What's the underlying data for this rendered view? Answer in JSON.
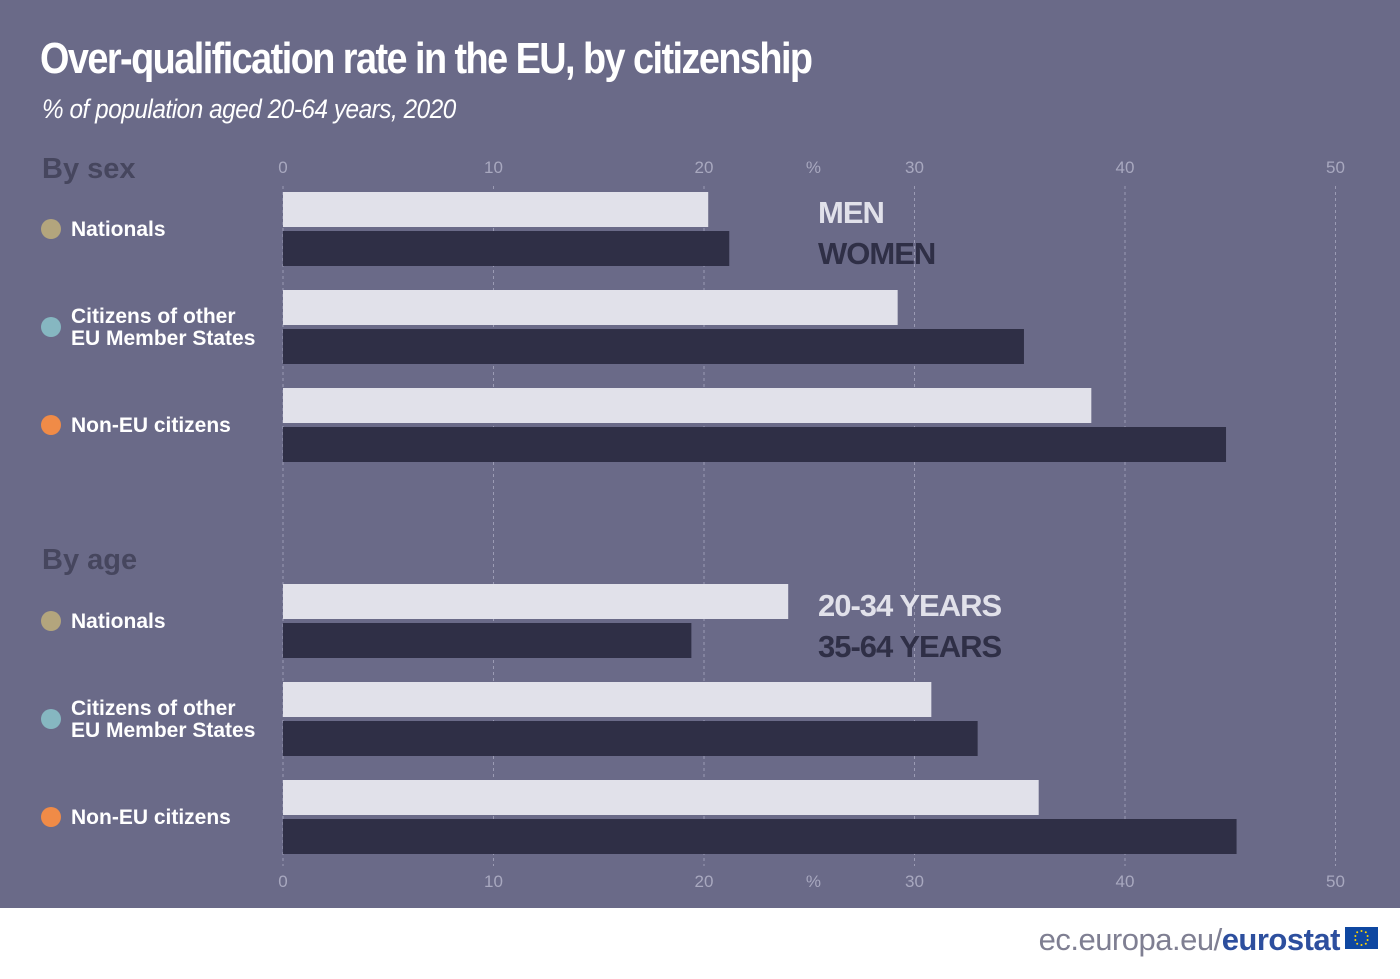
{
  "header": {
    "title": "Over-qualification rate in the EU, by citizenship",
    "subtitle": "% of population aged 20-64 years, 2020"
  },
  "colors": {
    "background": "#6a6a88",
    "light_series": "#e1e1ea",
    "dark_series": "#2f2f46",
    "nationals_dot": "#b3a57d",
    "eu_citizens_dot": "#86b7c1",
    "non_eu_dot": "#f08b47",
    "grid": "#a8a8bf",
    "section_heading": "#46465e"
  },
  "chart_data": [
    {
      "type": "bar",
      "orientation": "horizontal",
      "section": "By sex",
      "categories": [
        "Nationals",
        "Citizens of other EU Member States",
        "Non-EU citizens"
      ],
      "category_lines": [
        [
          "Nationals"
        ],
        [
          "Citizens of other",
          "EU Member States"
        ],
        [
          "Non-EU citizens"
        ]
      ],
      "category_dot_colors": [
        "#b3a57d",
        "#86b7c1",
        "#f08b47"
      ],
      "series": [
        {
          "name": "MEN",
          "color": "#e1e1ea",
          "values": [
            20.2,
            29.2,
            38.4
          ]
        },
        {
          "name": "WOMEN",
          "color": "#2f2f46",
          "values": [
            21.2,
            35.2,
            44.8
          ]
        }
      ],
      "xlabel": "%",
      "xlim": [
        0,
        50
      ],
      "ticks": [
        0,
        10,
        20,
        30,
        40,
        50
      ],
      "tick_labels": [
        "0",
        "10",
        "20",
        "30",
        "40",
        "50"
      ],
      "grid": true,
      "axis_position": "top",
      "legend": "inside-top-right"
    },
    {
      "type": "bar",
      "orientation": "horizontal",
      "section": "By age",
      "categories": [
        "Nationals",
        "Citizens of other EU Member States",
        "Non-EU citizens"
      ],
      "category_lines": [
        [
          "Nationals"
        ],
        [
          "Citizens of other",
          "EU Member States"
        ],
        [
          "Non-EU citizens"
        ]
      ],
      "category_dot_colors": [
        "#b3a57d",
        "#86b7c1",
        "#f08b47"
      ],
      "series": [
        {
          "name": "20-34 YEARS",
          "color": "#e1e1ea",
          "values": [
            24.0,
            30.8,
            35.9
          ]
        },
        {
          "name": "35-64 YEARS",
          "color": "#2f2f46",
          "values": [
            19.4,
            33.0,
            45.3
          ]
        }
      ],
      "xlabel": "%",
      "xlim": [
        0,
        50
      ],
      "ticks": [
        0,
        10,
        20,
        30,
        40,
        50
      ],
      "tick_labels": [
        "0",
        "10",
        "20",
        "30",
        "40",
        "50"
      ],
      "grid": true,
      "axis_position": "bottom",
      "legend": "inside-top-right"
    }
  ],
  "footer": {
    "url_prefix": "ec.europa.eu/",
    "brand": "eurostat"
  },
  "icons": {
    "flag": "eu-flag-icon"
  }
}
